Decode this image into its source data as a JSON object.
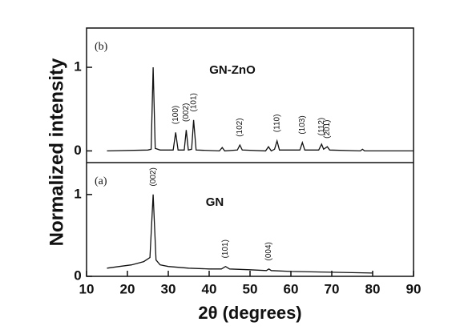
{
  "chart_data": [
    {
      "type": "line",
      "label": "(b)",
      "ylabel": "Normalized intensity",
      "x": [
        15,
        25,
        25.8,
        26.3,
        26.8,
        28,
        31.2,
        31.8,
        32.4,
        33.9,
        34.4,
        34.9,
        35.7,
        36.2,
        36.8,
        42.5,
        43.2,
        43.8,
        46.9,
        47.5,
        48.1,
        53.8,
        54.5,
        55.2,
        56.0,
        56.6,
        57.2,
        62.2,
        62.8,
        63.4,
        66.8,
        67.5,
        68.0,
        68.9,
        69.5,
        77.0,
        77.5,
        78.0,
        90
      ],
      "series": [
        {
          "name": "GN-ZnO",
          "color": "#111111",
          "values": [
            0,
            0.01,
            0.02,
            1.0,
            0.03,
            0.01,
            0.01,
            0.22,
            0.01,
            0.01,
            0.25,
            0.01,
            0.02,
            0.37,
            0.01,
            0,
            0.04,
            0,
            0.01,
            0.07,
            0.01,
            0,
            0.05,
            0,
            0.02,
            0.12,
            0.01,
            0.01,
            0.1,
            0.01,
            0.01,
            0.08,
            0.02,
            0.05,
            0.01,
            0,
            0.02,
            0,
            0
          ]
        }
      ],
      "ylim": [
        -0.14,
        1.47
      ],
      "yticks": [
        0,
        1
      ],
      "annotations": [
        {
          "text": "(100)",
          "x": 31.8
        },
        {
          "text": "(002)",
          "x": 34.4
        },
        {
          "text": "(101)",
          "x": 36.2
        },
        {
          "text": "(102)",
          "x": 47.5
        },
        {
          "text": "(110)",
          "x": 56.6
        },
        {
          "text": "(103)",
          "x": 62.8
        },
        {
          "text": "(112)",
          "x": 67.5
        },
        {
          "text": "(201)",
          "x": 68.9
        }
      ]
    },
    {
      "type": "line",
      "label": "(a)",
      "xlabel": "2θ (degrees)",
      "x": [
        15,
        18,
        21,
        24,
        25.5,
        26.3,
        27,
        28,
        30,
        35,
        40,
        43,
        44,
        45,
        50,
        54,
        54.6,
        55.2,
        60,
        70,
        80
      ],
      "series": [
        {
          "name": "GN",
          "color": "#111111",
          "values": [
            0.1,
            0.12,
            0.14,
            0.18,
            0.23,
            1.0,
            0.2,
            0.14,
            0.12,
            0.1,
            0.09,
            0.09,
            0.12,
            0.09,
            0.08,
            0.07,
            0.09,
            0.07,
            0.06,
            0.05,
            0.04
          ]
        }
      ],
      "ylim": [
        0,
        1.39
      ],
      "yticks": [
        0,
        1
      ],
      "xlim": [
        10,
        90
      ],
      "xticks": [
        10,
        20,
        30,
        40,
        50,
        60,
        70,
        80,
        90
      ],
      "annotations": [
        {
          "text": "(002)",
          "x": 26.3
        },
        {
          "text": "(101)",
          "x": 44
        },
        {
          "text": "(004)",
          "x": 54.6
        }
      ]
    }
  ]
}
